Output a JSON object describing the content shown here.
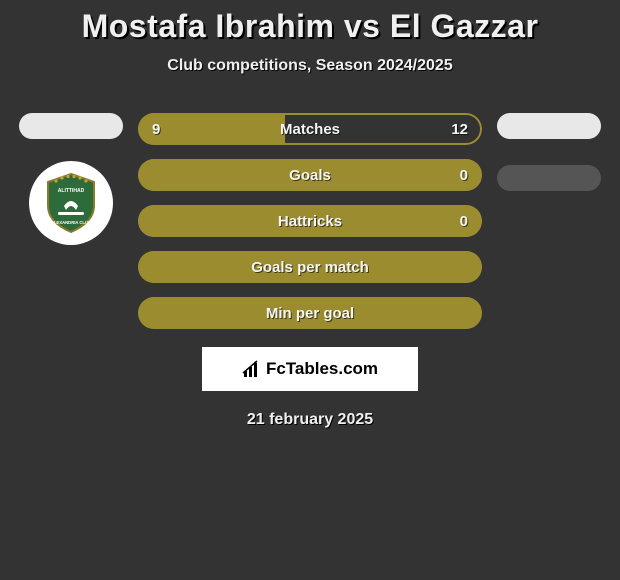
{
  "header": {
    "title": "Mostafa Ibrahim vs El Gazzar",
    "subtitle": "Club competitions, Season 2024/2025"
  },
  "colors": {
    "background": "#333333",
    "player1_fill": "#9a8c2f",
    "player2_fill": "#333333",
    "border": "#9a8c2f",
    "left_pill": "#e8e8e8",
    "right_pill_top": "#e8e8e8",
    "right_pill_bottom": "#555555",
    "text": "#f5f5f5",
    "text_shadow": "#000000",
    "brand_bg": "#ffffff",
    "brand_text": "#000000"
  },
  "left_pills": [
    {
      "color": "#e8e8e8"
    }
  ],
  "right_pills": [
    {
      "color": "#e8e8e8"
    },
    {
      "color": "#555555"
    }
  ],
  "club_badge": {
    "name": "Al Ittihad Alexandria Club",
    "shield_color": "#2e6b3a",
    "ring_color": "#8a7a2a",
    "star_color": "#c0a13a"
  },
  "stats": [
    {
      "label": "Matches",
      "left_value": "9",
      "right_value": "12",
      "left_pct": 42.86,
      "right_pct": 57.14,
      "left_fill": "#9a8c2f",
      "right_fill": "#333333",
      "border": "#9a8c2f"
    },
    {
      "label": "Goals",
      "left_value": "",
      "right_value": "0",
      "left_pct": 100,
      "right_pct": 0,
      "left_fill": "#9a8c2f",
      "right_fill": "#333333",
      "border": "#9a8c2f"
    },
    {
      "label": "Hattricks",
      "left_value": "",
      "right_value": "0",
      "left_pct": 100,
      "right_pct": 0,
      "left_fill": "#9a8c2f",
      "right_fill": "#333333",
      "border": "#9a8c2f"
    },
    {
      "label": "Goals per match",
      "left_value": "",
      "right_value": "",
      "left_pct": 100,
      "right_pct": 0,
      "left_fill": "#9a8c2f",
      "right_fill": "#333333",
      "border": "#9a8c2f"
    },
    {
      "label": "Min per goal",
      "left_value": "",
      "right_value": "",
      "left_pct": 100,
      "right_pct": 0,
      "left_fill": "#9a8c2f",
      "right_fill": "#333333",
      "border": "#9a8c2f"
    }
  ],
  "brand": {
    "text": "FcTables.com"
  },
  "footer": {
    "date": "21 february 2025"
  }
}
